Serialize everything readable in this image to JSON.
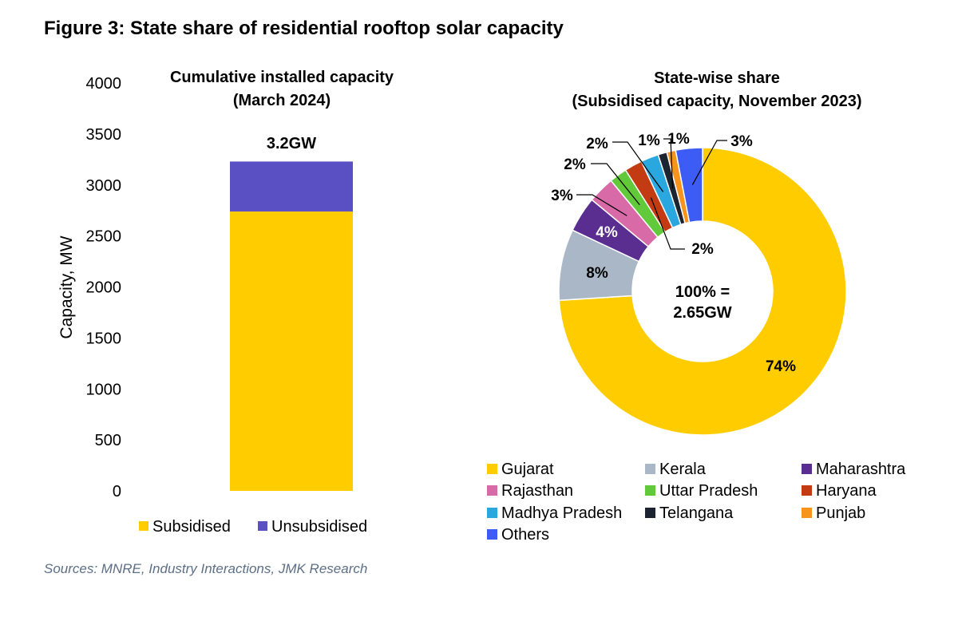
{
  "figure_title": "Figure 3: State share of residential rooftop solar capacity",
  "source_note": "Sources: MNRE, Industry Interactions, JMK Research",
  "colors": {
    "subsidised": "#ffcc00",
    "unsubsidised": "#5b4fc4",
    "gujarat": "#ffcc00",
    "kerala": "#a9b7c6",
    "maharashtra": "#5a2d91",
    "rajasthan": "#d86aa8",
    "uttar_pradesh": "#62c93a",
    "haryana": "#c23b12",
    "madhya_pradesh": "#2aa7df",
    "telangana": "#1b2430",
    "punjab": "#f7941d",
    "others": "#3d5cf5"
  },
  "chart_data": [
    {
      "type": "bar",
      "stacked": true,
      "title": "Cumulative installed capacity",
      "subtitle": "(March 2024)",
      "ylabel": "Capacity, MW",
      "xlabel": "",
      "ylim": [
        0,
        4000
      ],
      "yticks": [
        0,
        500,
        1000,
        1500,
        2000,
        2500,
        3000,
        3500,
        4000
      ],
      "categories": [
        ""
      ],
      "series": [
        {
          "name": "Subsidised",
          "values": [
            2740
          ]
        },
        {
          "name": "Unsubsidised",
          "values": [
            490
          ]
        }
      ],
      "total_label": "3.2GW",
      "legend": "bottom"
    },
    {
      "type": "pie",
      "donut": true,
      "title": "State-wise share",
      "subtitle": "(Subsidised capacity, November 2023)",
      "center_label_line1": "100% =",
      "center_label_line2": "2.65GW",
      "slices": [
        {
          "name": "Gujarat",
          "value": 74,
          "label": "74%"
        },
        {
          "name": "Kerala",
          "value": 8,
          "label": "8%"
        },
        {
          "name": "Maharashtra",
          "value": 4,
          "label": "4%"
        },
        {
          "name": "Rajasthan",
          "value": 3,
          "label": "3%"
        },
        {
          "name": "Uttar Pradesh",
          "value": 2,
          "label": "2%"
        },
        {
          "name": "Haryana",
          "value": 2,
          "label": "2%"
        },
        {
          "name": "Madhya Pradesh",
          "value": 2,
          "label": "2%"
        },
        {
          "name": "Telangana",
          "value": 1,
          "label": "1%"
        },
        {
          "name": "Punjab",
          "value": 1,
          "label": "1%"
        },
        {
          "name": "Others",
          "value": 3,
          "label": "3%"
        }
      ],
      "legend": "bottom"
    }
  ]
}
